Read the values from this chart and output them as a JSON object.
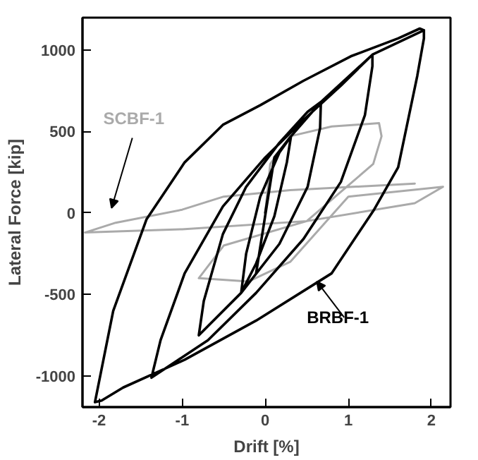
{
  "chart_data": {
    "type": "line",
    "xlabel": "Drift [%]",
    "ylabel": "Lateral Force [kip]",
    "xlim": [
      -2.2,
      2.23
    ],
    "ylim": [
      -1190,
      1197
    ],
    "xticks": [
      -2,
      -1,
      0,
      1,
      2
    ],
    "yticks": [
      -1000,
      -500,
      0,
      500,
      1000
    ],
    "marker": "none",
    "line_style": "solid",
    "series": [
      {
        "name": "SCBF-1",
        "color": "#aaaaaa",
        "x": [
          0,
          0.06,
          0.3,
          0.8,
          1.37,
          1.4,
          1.3,
          0.5,
          -0.5,
          -0.8,
          -0.2,
          0.3,
          1.0,
          2.14,
          1.8,
          0.5,
          -1.0,
          -2.17,
          -1.8,
          -1.0,
          -0.5,
          0.3,
          1.8
        ],
        "values": [
          0,
          300,
          470,
          530,
          550,
          470,
          300,
          -50,
          -200,
          -400,
          -420,
          -300,
          100,
          160,
          60,
          -50,
          -100,
          -120,
          -60,
          20,
          100,
          140,
          180
        ]
      },
      {
        "name": "BRBF-1",
        "color": "#000000",
        "x": [
          0,
          0.11,
          -0.11,
          0.11,
          0.31,
          0.26,
          0.11,
          -0.11,
          -0.29,
          -0.23,
          -0.06,
          0.17,
          0.31,
          0.67,
          0.66,
          0.51,
          0.17,
          -0.29,
          -0.8,
          -0.74,
          -0.51,
          -0.23,
          0.17,
          0.51,
          0.67,
          1.29,
          1.29,
          1.2,
          0.91,
          0.46,
          -0.11,
          -0.69,
          -1.37,
          -1.26,
          -0.97,
          -0.51,
          0,
          0.46,
          0.91,
          1.29,
          1.91,
          1.91,
          1.83,
          1.6,
          1.31,
          0.8,
          -0.11,
          -0.97,
          -1.71,
          -1.97,
          -2.05,
          -1.83,
          -1.43,
          -0.97,
          -0.51,
          -0.06,
          0.46,
          1.03,
          1.6,
          1.86,
          1.91
        ],
        "values": [
          0,
          340,
          -370,
          340,
          470,
          310,
          -20,
          -310,
          -490,
          -250,
          100,
          370,
          470,
          680,
          520,
          160,
          -190,
          -490,
          -750,
          -540,
          -130,
          160,
          430,
          620,
          680,
          970,
          900,
          600,
          190,
          -160,
          -490,
          -780,
          -1010,
          -780,
          -370,
          40,
          340,
          570,
          780,
          970,
          1120,
          1070,
          840,
          280,
          20,
          -370,
          -660,
          -900,
          -1070,
          -1150,
          -1160,
          -600,
          -40,
          310,
          540,
          660,
          810,
          960,
          1070,
          1130,
          1120
        ]
      }
    ]
  }
}
